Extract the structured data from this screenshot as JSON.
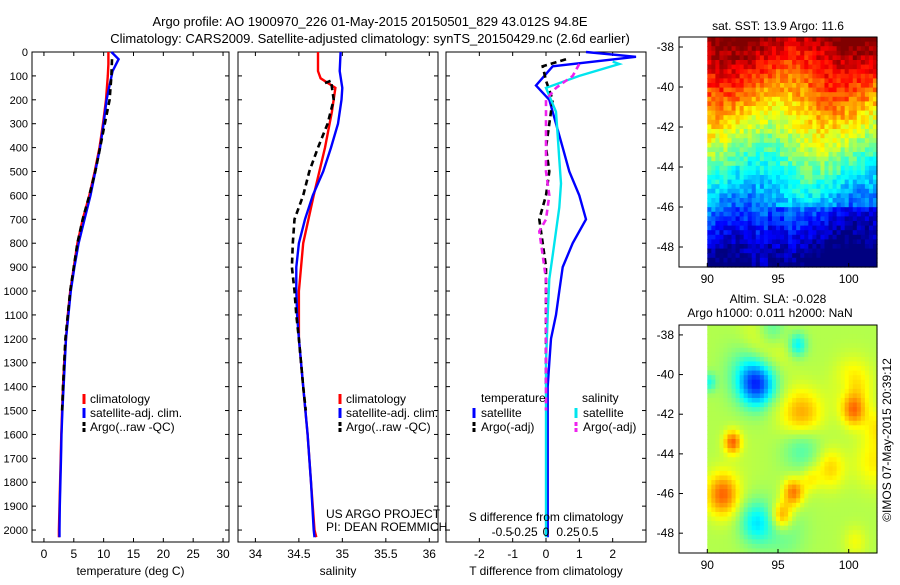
{
  "header": {
    "line1": "Argo profile: AO 1900970_226 01-May-2015 20150501_829 43.012S 94.8E",
    "line2": "Climatology: CARS2009. Satellite-adjusted climatology: synTS_20150429.nc (2.6d earlier)"
  },
  "footer": {
    "project": "US ARGO PROJECT",
    "pi": "PI: DEAN ROEMMICH",
    "imos": "©IMOS 07-May-2015 20:39:12"
  },
  "colors": {
    "red": "#ff0000",
    "blue": "#0000ff",
    "black": "#000000",
    "cyan": "#00e5ee",
    "magenta": "#ee22ee"
  },
  "chart_data": [
    {
      "id": "temperature",
      "type": "line",
      "xlabel": "temperature (deg C)",
      "ylabel": "",
      "xlim": [
        -2,
        31
      ],
      "ylim": [
        2050,
        0
      ],
      "xticks": [
        0,
        5,
        10,
        15,
        20,
        25,
        30
      ],
      "yticks": [
        0,
        100,
        200,
        300,
        400,
        500,
        600,
        700,
        800,
        900,
        1000,
        1100,
        1200,
        1300,
        1400,
        1500,
        1600,
        1700,
        1800,
        1900,
        2000
      ],
      "legend": {
        "position": "lower-middle",
        "entries": [
          "climatology",
          "satellite-adj. clim.",
          "Argo(..raw -QC)"
        ]
      },
      "series": [
        {
          "name": "climatology",
          "color": "red",
          "style": "solid",
          "points": [
            [
              10.8,
              0
            ],
            [
              10.8,
              50
            ],
            [
              10.7,
              100
            ],
            [
              10.4,
              200
            ],
            [
              9.9,
              300
            ],
            [
              9.3,
              400
            ],
            [
              8.5,
              500
            ],
            [
              7.6,
              600
            ],
            [
              6.5,
              700
            ],
            [
              5.6,
              800
            ],
            [
              5.0,
              900
            ],
            [
              4.4,
              1000
            ],
            [
              4.0,
              1100
            ],
            [
              3.7,
              1200
            ],
            [
              3.4,
              1300
            ],
            [
              3.2,
              1400
            ],
            [
              3.05,
              1500
            ],
            [
              2.9,
              1600
            ],
            [
              2.8,
              1700
            ],
            [
              2.7,
              1800
            ],
            [
              2.6,
              1900
            ],
            [
              2.5,
              2000
            ],
            [
              2.5,
              2030
            ]
          ]
        },
        {
          "name": "satellite-adj. clim.",
          "color": "blue",
          "style": "solid",
          "points": [
            [
              11.3,
              0
            ],
            [
              12.5,
              30
            ],
            [
              11.5,
              80
            ],
            [
              10.9,
              150
            ],
            [
              10.5,
              200
            ],
            [
              10.0,
              300
            ],
            [
              9.4,
              400
            ],
            [
              8.6,
              500
            ],
            [
              7.8,
              600
            ],
            [
              6.8,
              700
            ],
            [
              5.8,
              800
            ],
            [
              5.1,
              900
            ],
            [
              4.5,
              1000
            ],
            [
              4.1,
              1100
            ],
            [
              3.7,
              1200
            ],
            [
              3.5,
              1300
            ],
            [
              3.3,
              1400
            ],
            [
              3.1,
              1500
            ],
            [
              2.95,
              1600
            ],
            [
              2.85,
              1700
            ],
            [
              2.75,
              1800
            ],
            [
              2.65,
              1900
            ],
            [
              2.6,
              2000
            ],
            [
              2.6,
              2030
            ]
          ]
        },
        {
          "name": "Argo(..raw -QC)",
          "color": "black",
          "style": "dashed",
          "points": [
            [
              11.4,
              30
            ],
            [
              11.3,
              100
            ],
            [
              11.0,
              200
            ],
            [
              10.2,
              300
            ],
            [
              9.4,
              400
            ],
            [
              8.6,
              500
            ],
            [
              7.6,
              600
            ],
            [
              6.5,
              700
            ],
            [
              5.6,
              800
            ],
            [
              5.0,
              900
            ],
            [
              4.4,
              1000
            ],
            [
              4.0,
              1100
            ],
            [
              3.6,
              1200
            ],
            [
              3.4,
              1300
            ],
            [
              3.2,
              1400
            ],
            [
              3.05,
              1500
            ]
          ]
        }
      ]
    },
    {
      "id": "salinity",
      "type": "line",
      "xlabel": "salinity",
      "ylabel": "",
      "xlim": [
        33.8,
        36.1
      ],
      "ylim": [
        2050,
        0
      ],
      "xticks": [
        34,
        34.5,
        35,
        35.5,
        36
      ],
      "legend": {
        "position": "lower-right",
        "entries": [
          "climatology",
          "satellite-adj. clim.",
          "Argo(..raw -QC)"
        ]
      },
      "series": [
        {
          "name": "climatology",
          "color": "red",
          "style": "solid",
          "points": [
            [
              34.72,
              0
            ],
            [
              34.72,
              80
            ],
            [
              34.75,
              110
            ],
            [
              34.92,
              150
            ],
            [
              34.88,
              250
            ],
            [
              34.8,
              400
            ],
            [
              34.67,
              600
            ],
            [
              34.55,
              800
            ],
            [
              34.5,
              1000
            ],
            [
              34.5,
              1200
            ],
            [
              34.55,
              1400
            ],
            [
              34.6,
              1600
            ],
            [
              34.64,
              1800
            ],
            [
              34.68,
              2000
            ],
            [
              34.7,
              2030
            ]
          ]
        },
        {
          "name": "satellite-adj. clim.",
          "color": "blue",
          "style": "solid",
          "points": [
            [
              34.98,
              0
            ],
            [
              34.97,
              80
            ],
            [
              35.0,
              150
            ],
            [
              34.99,
              200
            ],
            [
              34.95,
              300
            ],
            [
              34.87,
              400
            ],
            [
              34.78,
              500
            ],
            [
              34.66,
              600
            ],
            [
              34.57,
              700
            ],
            [
              34.5,
              800
            ],
            [
              34.47,
              900
            ],
            [
              34.47,
              1000
            ],
            [
              34.48,
              1100
            ],
            [
              34.5,
              1200
            ],
            [
              34.55,
              1400
            ],
            [
              34.6,
              1600
            ],
            [
              34.64,
              1800
            ],
            [
              34.67,
              2000
            ],
            [
              34.68,
              2030
            ]
          ]
        },
        {
          "name": "Argo(..raw -QC)",
          "color": "black",
          "style": "dashed",
          "points": [
            [
              34.8,
              130
            ],
            [
              34.87,
              120
            ],
            [
              34.9,
              200
            ],
            [
              34.83,
              300
            ],
            [
              34.72,
              400
            ],
            [
              34.62,
              500
            ],
            [
              34.55,
              600
            ],
            [
              34.45,
              700
            ],
            [
              34.43,
              800
            ],
            [
              34.42,
              900
            ],
            [
              34.45,
              1000
            ],
            [
              34.47,
              1100
            ],
            [
              34.5,
              1200
            ],
            [
              34.55,
              1400
            ],
            [
              34.58,
              1500
            ]
          ]
        }
      ]
    },
    {
      "id": "difference",
      "type": "line",
      "xlabel": "T difference from climatology",
      "xlabel2": "S difference from climatology",
      "xlim": [
        -3,
        3
      ],
      "ylim": [
        2050,
        0
      ],
      "xticks": [
        -2,
        -1,
        0,
        1,
        2
      ],
      "xticks2": [
        "-0.5",
        "-0.25",
        "0",
        "0.25",
        "0.5"
      ],
      "legend": {
        "position": "lower-middle",
        "headers": [
          "temperature",
          "salinity"
        ],
        "entries": [
          "satellite",
          "Argo(-adj)",
          "satellite",
          "Argo(-adj)"
        ]
      },
      "series": [
        {
          "name": "temperature satellite",
          "color": "blue",
          "style": "solid",
          "points": [
            [
              1.2,
              0
            ],
            [
              2.7,
              20
            ],
            [
              0.2,
              60
            ],
            [
              -0.3,
              140
            ],
            [
              0.1,
              200
            ],
            [
              0.3,
              300
            ],
            [
              0.5,
              400
            ],
            [
              0.7,
              500
            ],
            [
              1.0,
              600
            ],
            [
              1.2,
              700
            ],
            [
              0.8,
              800
            ],
            [
              0.5,
              900
            ],
            [
              0.4,
              1000
            ],
            [
              0.3,
              1100
            ],
            [
              0.15,
              1200
            ],
            [
              0.1,
              1300
            ],
            [
              0.05,
              1400
            ],
            [
              0.05,
              1600
            ],
            [
              0.05,
              1800
            ],
            [
              0.05,
              2000
            ],
            [
              0.05,
              2030
            ]
          ]
        },
        {
          "name": "temperature Argo(-adj)",
          "color": "black",
          "style": "dashed",
          "points": [
            [
              0.6,
              30
            ],
            [
              -0.1,
              60
            ],
            [
              0.0,
              120
            ],
            [
              0.2,
              200
            ],
            [
              0.1,
              300
            ],
            [
              0.0,
              400
            ],
            [
              0.1,
              500
            ],
            [
              0.0,
              600
            ],
            [
              -0.2,
              700
            ],
            [
              -0.1,
              800
            ],
            [
              0.0,
              900
            ],
            [
              0.0,
              1000
            ],
            [
              0.0,
              1200
            ],
            [
              0.0,
              1400
            ]
          ]
        },
        {
          "name": "salinity satellite",
          "color": "cyan",
          "style": "solid",
          "points": [
            [
              2.0,
              40
            ],
            [
              2.2,
              50
            ],
            [
              1.0,
              100
            ],
            [
              0.0,
              150
            ],
            [
              0.3,
              250
            ],
            [
              0.35,
              350
            ],
            [
              0.4,
              450
            ],
            [
              0.45,
              550
            ],
            [
              0.4,
              650
            ],
            [
              0.3,
              750
            ],
            [
              0.2,
              850
            ],
            [
              0.1,
              950
            ],
            [
              0.05,
              1100
            ],
            [
              0.0,
              1300
            ],
            [
              0.0,
              1600
            ],
            [
              0.0,
              1900
            ],
            [
              0.0,
              2030
            ]
          ]
        },
        {
          "name": "salinity Argo(-adj)",
          "color": "magenta",
          "style": "dashed",
          "points": [
            [
              1.0,
              50
            ],
            [
              0.8,
              100
            ],
            [
              0.3,
              150
            ],
            [
              0.0,
              200
            ],
            [
              0.0,
              300
            ],
            [
              0.0,
              400
            ],
            [
              0.0,
              500
            ],
            [
              0.1,
              600
            ],
            [
              0.0,
              700
            ],
            [
              -0.2,
              750
            ],
            [
              -0.1,
              850
            ],
            [
              0.0,
              950
            ],
            [
              0.0,
              1100
            ],
            [
              0.0,
              1300
            ],
            [
              0.0,
              1500
            ]
          ]
        }
      ]
    },
    {
      "id": "sst-map",
      "type": "heatmap",
      "title": "sat. SST: 13.9 Argo: 11.6",
      "xlim": [
        88,
        102
      ],
      "ylim": [
        -49,
        -37.5
      ],
      "xticks": [
        90,
        95,
        100
      ],
      "yticks": [
        -38,
        -40,
        -42,
        -44,
        -46,
        -48
      ],
      "colormap": "jet",
      "description_bands": [
        "dark red north",
        "orange",
        "yellow",
        "green",
        "cyan",
        "blue",
        "dark blue south"
      ]
    },
    {
      "id": "sla-map",
      "type": "heatmap",
      "title": "Altim. SLA: -0.028",
      "subtitle": "Argo h1000: 0.011 h2000: NaN",
      "xlim": [
        88,
        102
      ],
      "ylim": [
        -49,
        -37.5
      ],
      "xticks": [
        90,
        95,
        100
      ],
      "yticks": [
        -38,
        -40,
        -42,
        -44,
        -46,
        -48
      ],
      "colormap": "jet"
    }
  ]
}
